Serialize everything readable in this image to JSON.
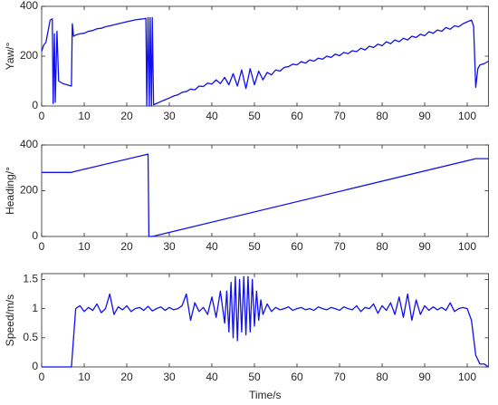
{
  "chart_data": [
    {
      "type": "line",
      "ylabel": "Yaw/°",
      "xlim": [
        0,
        105
      ],
      "xticks": [
        0,
        10,
        20,
        30,
        40,
        50,
        60,
        70,
        80,
        90,
        100
      ],
      "ylim": [
        0,
        400
      ],
      "yticks": [
        0,
        200,
        400
      ],
      "color": "#1010ee",
      "x": [
        0,
        0.5,
        1,
        1.5,
        2,
        2.5,
        2.7,
        3,
        3.2,
        3.6,
        4,
        5,
        6,
        7,
        7.2,
        7.5,
        8,
        9,
        10,
        11,
        12,
        13,
        14,
        15,
        16,
        17,
        18,
        19,
        20,
        21,
        22,
        23,
        24,
        24.5,
        24.7,
        25,
        25.3,
        25.5,
        25.8,
        26,
        26.3,
        27,
        28,
        29,
        30,
        31,
        32,
        33,
        34,
        35,
        36,
        37,
        38,
        39,
        40,
        41,
        42,
        43,
        44,
        45,
        46,
        47,
        48,
        49,
        50,
        51,
        52,
        53,
        54,
        55,
        56,
        57,
        58,
        59,
        60,
        61,
        62,
        63,
        64,
        65,
        66,
        67,
        68,
        69,
        70,
        71,
        72,
        73,
        74,
        75,
        76,
        77,
        78,
        79,
        80,
        81,
        82,
        83,
        84,
        85,
        86,
        87,
        88,
        89,
        90,
        91,
        92,
        93,
        94,
        95,
        96,
        97,
        98,
        99,
        100,
        101,
        101.5,
        102,
        102.5,
        103,
        104,
        105
      ],
      "values": [
        220,
        245,
        255,
        300,
        345,
        350,
        10,
        290,
        15,
        300,
        100,
        90,
        85,
        80,
        330,
        280,
        285,
        290,
        292,
        300,
        303,
        310,
        312,
        318,
        322,
        326,
        330,
        334,
        338,
        342,
        346,
        348,
        350,
        352,
        0,
        355,
        0,
        355,
        0,
        355,
        5,
        10,
        18,
        25,
        32,
        40,
        45,
        55,
        58,
        68,
        65,
        80,
        78,
        92,
        88,
        105,
        90,
        115,
        85,
        130,
        80,
        145,
        70,
        150,
        85,
        140,
        105,
        135,
        125,
        145,
        140,
        155,
        158,
        168,
        165,
        178,
        172,
        185,
        180,
        192,
        188,
        200,
        195,
        208,
        202,
        215,
        210,
        222,
        218,
        232,
        225,
        240,
        235,
        248,
        242,
        258,
        250,
        265,
        258,
        272,
        265,
        280,
        275,
        288,
        282,
        298,
        292,
        305,
        300,
        315,
        308,
        322,
        318,
        330,
        338,
        345,
        320,
        75,
        150,
        165,
        170,
        180
      ]
    },
    {
      "type": "line",
      "ylabel": "Heading/°",
      "xlim": [
        0,
        105
      ],
      "xticks": [
        0,
        10,
        20,
        30,
        40,
        50,
        60,
        70,
        80,
        90,
        100
      ],
      "ylim": [
        0,
        400
      ],
      "yticks": [
        0,
        200,
        400
      ],
      "color": "#1010ee",
      "x": [
        0,
        7,
        8,
        25,
        25.2,
        26,
        102,
        105
      ],
      "values": [
        280,
        280,
        285,
        360,
        0,
        0,
        340,
        340
      ]
    },
    {
      "type": "line",
      "ylabel": "Speed/m/s",
      "xlabel": "Time/s",
      "xlim": [
        0,
        105
      ],
      "xticks": [
        0,
        10,
        20,
        30,
        40,
        50,
        60,
        70,
        80,
        90,
        100
      ],
      "ylim": [
        0,
        1.6
      ],
      "yticks": [
        0,
        0.5,
        1,
        1.5
      ],
      "color": "#1010ee",
      "x": [
        0,
        7,
        8,
        9,
        10,
        11,
        12,
        13,
        14,
        15,
        16,
        17,
        18,
        19,
        20,
        21,
        22,
        23,
        24,
        25,
        26,
        27,
        28,
        29,
        30,
        31,
        32,
        33,
        34,
        35,
        36,
        37,
        38,
        39,
        40,
        41,
        42,
        43,
        43.5,
        44,
        44.5,
        45,
        45.5,
        46,
        46.5,
        47,
        47.5,
        48,
        48.5,
        49,
        49.5,
        50,
        50.5,
        51,
        51.5,
        52,
        53,
        54,
        55,
        56,
        57,
        58,
        59,
        60,
        61,
        62,
        63,
        64,
        65,
        66,
        67,
        68,
        69,
        70,
        71,
        72,
        73,
        74,
        75,
        76,
        77,
        78,
        79,
        80,
        81,
        82,
        83,
        84,
        85,
        86,
        87,
        88,
        89,
        90,
        91,
        92,
        93,
        94,
        95,
        96,
        97,
        98,
        99,
        100,
        101,
        102,
        103,
        104,
        105
      ],
      "values": [
        0,
        0,
        1.0,
        1.05,
        0.95,
        1.02,
        0.97,
        1.08,
        0.93,
        1.0,
        1.25,
        0.9,
        1.03,
        0.98,
        1.05,
        0.95,
        1.0,
        1.02,
        0.97,
        1.04,
        0.96,
        1.0,
        1.03,
        0.97,
        1.02,
        0.98,
        1.0,
        1.05,
        1.25,
        0.8,
        1.1,
        0.95,
        1.02,
        0.9,
        1.2,
        0.85,
        1.3,
        0.75,
        1.3,
        0.6,
        1.45,
        0.5,
        1.55,
        0.45,
        1.5,
        0.6,
        1.55,
        0.55,
        1.55,
        0.6,
        1.5,
        0.7,
        1.3,
        0.8,
        1.15,
        0.9,
        1.08,
        0.95,
        1.02,
        0.98,
        1.0,
        1.03,
        0.97,
        1.0,
        1.02,
        0.98,
        1.0,
        0.97,
        1.03,
        1.0,
        0.98,
        1.02,
        1.0,
        0.97,
        1.03,
        1.0,
        0.98,
        1.05,
        0.95,
        1.02,
        1.0,
        1.08,
        0.92,
        1.05,
        0.97,
        1.1,
        0.9,
        1.2,
        0.85,
        1.25,
        0.8,
        1.15,
        0.9,
        1.05,
        0.97,
        1.03,
        0.98,
        1.02,
        0.97,
        1.1,
        0.95,
        1.0,
        1.02,
        1.0,
        0.8,
        0.2,
        0.05,
        0.05,
        0
      ]
    }
  ]
}
